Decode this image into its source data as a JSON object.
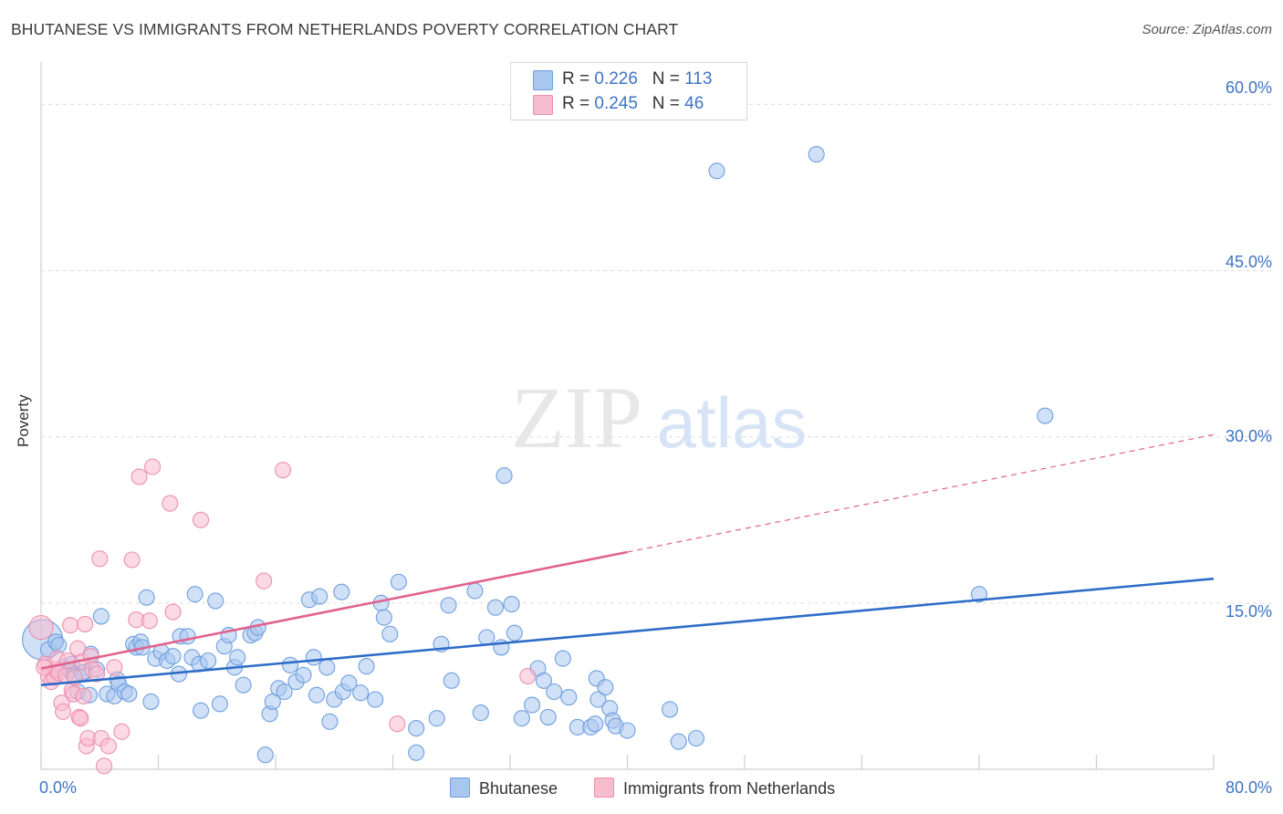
{
  "title": "BHUTANESE VS IMMIGRANTS FROM NETHERLANDS POVERTY CORRELATION CHART",
  "source": "Source: ZipAtlas.com",
  "watermark": {
    "zip": "ZIP",
    "atlas": "atlas"
  },
  "legend_stats": [
    {
      "r_label": "R = ",
      "r_value": "0.226",
      "n_label": "N = ",
      "n_value": "113"
    },
    {
      "r_label": "R = ",
      "r_value": "0.245",
      "n_label": "N = ",
      "n_value": "46"
    }
  ],
  "chart_data": {
    "type": "scatter",
    "title": "BHUTANESE VS IMMIGRANTS FROM NETHERLANDS POVERTY CORRELATION CHART",
    "xlabel": "",
    "ylabel": "Poverty",
    "xlim": [
      0,
      80
    ],
    "ylim": [
      0,
      63
    ],
    "x_tick_labels": [
      "0.0%",
      "80.0%"
    ],
    "y_ticks": [
      15,
      30,
      45,
      60
    ],
    "y_tick_labels": [
      "15.0%",
      "30.0%",
      "45.0%",
      "60.0%"
    ],
    "grid": true,
    "legend_position": "bottom",
    "series": [
      {
        "name": "Bhutanese",
        "color": "#6f9fe0",
        "fill": "#a9c6ef",
        "line_color": "#2f6cc8",
        "R": 0.226,
        "N": 113,
        "trend": {
          "x0": 0,
          "y0": 7.6,
          "x1": 80,
          "y1": 17.2
        },
        "points": [
          [
            0.1,
            11.7
          ],
          [
            0.5,
            10.8
          ],
          [
            1.0,
            11.5
          ],
          [
            1.5,
            9.2
          ],
          [
            2.0,
            8.9
          ],
          [
            2.2,
            8.5
          ],
          [
            2.5,
            7.0
          ],
          [
            3.0,
            8.8
          ],
          [
            3.3,
            6.7
          ],
          [
            4.1,
            13.8
          ],
          [
            4.5,
            6.8
          ],
          [
            5.0,
            6.6
          ],
          [
            5.2,
            8.1
          ],
          [
            5.3,
            7.7
          ],
          [
            5.7,
            7.0
          ],
          [
            6.0,
            6.8
          ],
          [
            6.3,
            11.3
          ],
          [
            6.5,
            11.0
          ],
          [
            6.8,
            11.5
          ],
          [
            7.2,
            15.5
          ],
          [
            7.5,
            6.1
          ],
          [
            7.8,
            10.0
          ],
          [
            8.2,
            10.6
          ],
          [
            8.6,
            9.8
          ],
          [
            9.5,
            12.0
          ],
          [
            9.4,
            8.6
          ],
          [
            10.0,
            12.0
          ],
          [
            10.3,
            10.1
          ],
          [
            10.5,
            15.8
          ],
          [
            10.8,
            9.5
          ],
          [
            10.9,
            5.3
          ],
          [
            11.4,
            9.8
          ],
          [
            11.9,
            15.2
          ],
          [
            12.2,
            5.9
          ],
          [
            12.5,
            11.1
          ],
          [
            12.8,
            12.1
          ],
          [
            13.2,
            9.2
          ],
          [
            13.4,
            10.1
          ],
          [
            13.8,
            7.6
          ],
          [
            14.3,
            12.1
          ],
          [
            14.6,
            12.3
          ],
          [
            14.8,
            12.8
          ],
          [
            15.3,
            1.3
          ],
          [
            15.6,
            5.0
          ],
          [
            15.8,
            6.1
          ],
          [
            16.2,
            7.3
          ],
          [
            16.6,
            7.0
          ],
          [
            17.0,
            9.4
          ],
          [
            17.4,
            7.9
          ],
          [
            17.9,
            8.5
          ],
          [
            18.3,
            15.3
          ],
          [
            18.6,
            10.1
          ],
          [
            18.8,
            6.7
          ],
          [
            19.0,
            15.6
          ],
          [
            19.5,
            9.2
          ],
          [
            19.7,
            4.3
          ],
          [
            20.0,
            6.3
          ],
          [
            20.5,
            16.0
          ],
          [
            20.6,
            7.0
          ],
          [
            21.0,
            7.8
          ],
          [
            21.8,
            6.9
          ],
          [
            22.2,
            9.3
          ],
          [
            22.8,
            6.3
          ],
          [
            23.2,
            15.0
          ],
          [
            23.4,
            13.7
          ],
          [
            23.8,
            12.2
          ],
          [
            24.4,
            16.9
          ],
          [
            25.6,
            3.7
          ],
          [
            25.6,
            1.5
          ],
          [
            27.0,
            4.6
          ],
          [
            27.3,
            11.3
          ],
          [
            27.8,
            14.8
          ],
          [
            28.0,
            8.0
          ],
          [
            29.6,
            16.1
          ],
          [
            30.0,
            5.1
          ],
          [
            30.4,
            11.9
          ],
          [
            31.0,
            14.6
          ],
          [
            31.4,
            11.0
          ],
          [
            31.6,
            26.5
          ],
          [
            32.1,
            14.9
          ],
          [
            32.3,
            12.3
          ],
          [
            32.8,
            4.6
          ],
          [
            33.5,
            5.8
          ],
          [
            33.9,
            9.1
          ],
          [
            34.3,
            8.0
          ],
          [
            34.6,
            4.7
          ],
          [
            35.0,
            7.0
          ],
          [
            35.6,
            10.0
          ],
          [
            36.0,
            6.5
          ],
          [
            36.6,
            3.8
          ],
          [
            37.5,
            3.8
          ],
          [
            37.8,
            4.1
          ],
          [
            37.9,
            8.2
          ],
          [
            38.0,
            6.3
          ],
          [
            38.5,
            7.4
          ],
          [
            38.8,
            5.5
          ],
          [
            39.0,
            4.4
          ],
          [
            39.2,
            3.9
          ],
          [
            40.0,
            3.5
          ],
          [
            42.9,
            5.4
          ],
          [
            43.5,
            2.5
          ],
          [
            44.7,
            2.8
          ],
          [
            46.1,
            54.0
          ],
          [
            52.9,
            55.5
          ],
          [
            64.0,
            15.8
          ],
          [
            68.5,
            31.9
          ],
          [
            2.8,
            8.7
          ],
          [
            9.0,
            10.2
          ],
          [
            6.9,
            11.0
          ],
          [
            3.8,
            9.0
          ],
          [
            1.2,
            11.2
          ],
          [
            2.1,
            9.5
          ],
          [
            3.4,
            10.4
          ]
        ]
      },
      {
        "name": "Immigrants from Netherlands",
        "color": "#ee8fae",
        "fill": "#f8bccf",
        "line_color": "#e0638d",
        "R": 0.245,
        "N": 46,
        "trend": {
          "x0": 0,
          "y0": 9.1,
          "x1": 40,
          "y1": 19.6
        },
        "trend_ext": {
          "x0": 40,
          "y0": 19.6,
          "x1": 80,
          "y1": 30.2
        },
        "points": [
          [
            0.0,
            12.8
          ],
          [
            0.3,
            9.5
          ],
          [
            0.5,
            8.4
          ],
          [
            0.7,
            7.9
          ],
          [
            0.9,
            8.3
          ],
          [
            1.0,
            9.0
          ],
          [
            1.1,
            10.0
          ],
          [
            1.2,
            8.7
          ],
          [
            1.4,
            6.0
          ],
          [
            1.5,
            5.2
          ],
          [
            1.7,
            8.5
          ],
          [
            1.8,
            9.8
          ],
          [
            2.0,
            13.0
          ],
          [
            2.1,
            7.1
          ],
          [
            2.2,
            6.8
          ],
          [
            2.3,
            8.3
          ],
          [
            2.5,
            10.9
          ],
          [
            2.6,
            4.7
          ],
          [
            2.7,
            4.6
          ],
          [
            2.8,
            9.7
          ],
          [
            2.9,
            6.6
          ],
          [
            3.0,
            13.1
          ],
          [
            3.1,
            2.1
          ],
          [
            3.2,
            2.8
          ],
          [
            3.4,
            10.2
          ],
          [
            3.5,
            9.0
          ],
          [
            3.8,
            8.6
          ],
          [
            4.0,
            19.0
          ],
          [
            4.1,
            2.8
          ],
          [
            4.3,
            0.3
          ],
          [
            4.6,
            2.1
          ],
          [
            5.0,
            9.2
          ],
          [
            5.5,
            3.4
          ],
          [
            6.2,
            18.9
          ],
          [
            6.5,
            13.5
          ],
          [
            6.7,
            26.4
          ],
          [
            7.4,
            13.4
          ],
          [
            7.6,
            27.3
          ],
          [
            8.8,
            24.0
          ],
          [
            9.0,
            14.2
          ],
          [
            10.9,
            22.5
          ],
          [
            15.2,
            17.0
          ],
          [
            16.5,
            27.0
          ],
          [
            24.3,
            4.1
          ],
          [
            33.2,
            8.4
          ],
          [
            0.2,
            9.2
          ]
        ]
      }
    ]
  }
}
